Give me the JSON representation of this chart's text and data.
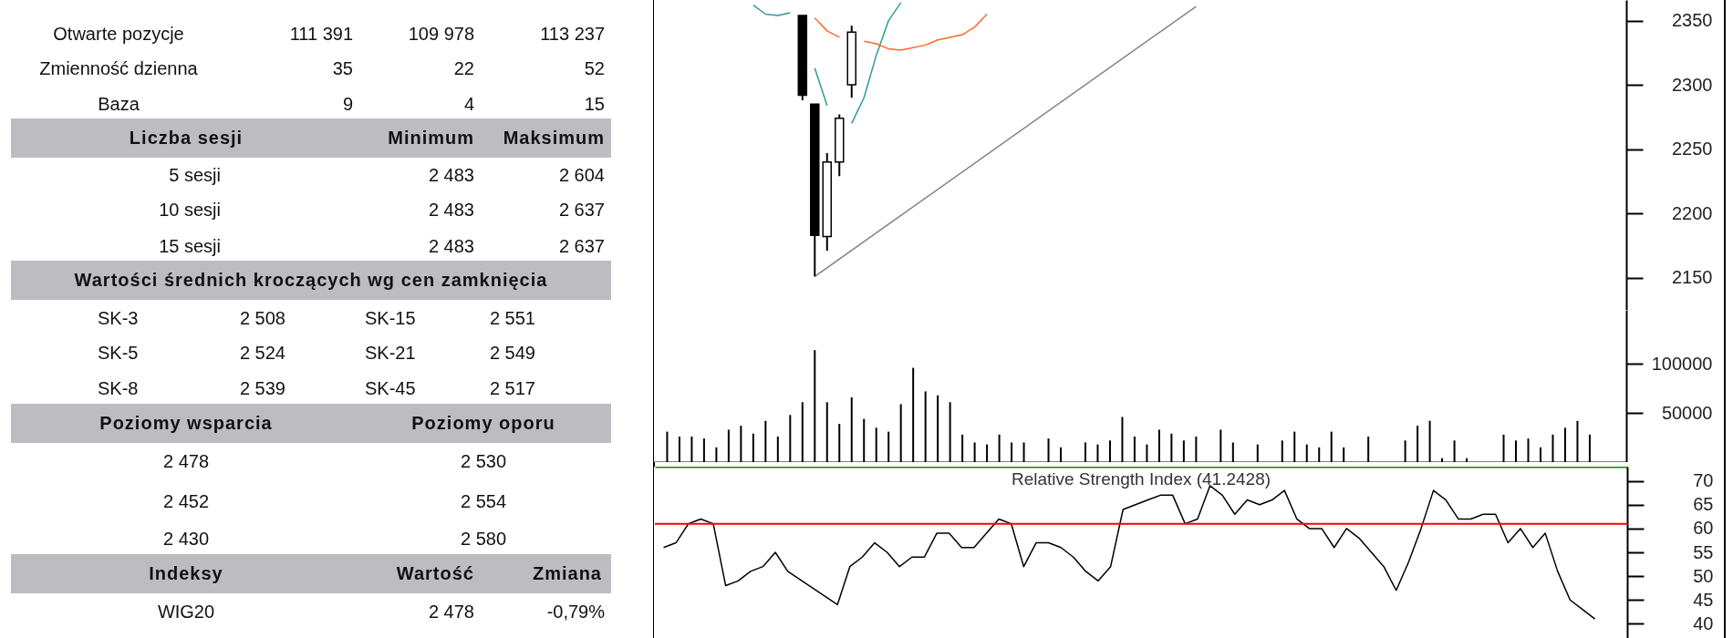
{
  "chart_data": [
    {
      "type": "other",
      "annotations": [
        "Otwarte pozycje",
        "111 391",
        "109 978",
        "113 237",
        "Zmienność dzienna",
        "35",
        "22",
        "52",
        "Baza",
        "9",
        "4",
        "15",
        "Liczba sesji",
        "Minimum",
        "Maksimum",
        "5 sesji",
        "2 483",
        "2 604",
        "10 sesji",
        "2 483",
        "2 637",
        "15 sesji",
        "2 483",
        "2 637",
        "Wartości średnich kroczących wg cen zamknięcia",
        "SK-3",
        "2 508",
        "SK-15",
        "2 551",
        "SK-5",
        "2 524",
        "SK-21",
        "2 549",
        "SK-8",
        "2 539",
        "SK-45",
        "2 517",
        "Poziomy wsparcia",
        "Poziomy oporu",
        "2 478",
        "2 530",
        "2 452",
        "2 554",
        "2 430",
        "2 580",
        "Indeksy",
        "Wartość",
        "Zmiana",
        "WIG20",
        "2 478",
        "-0,79%"
      ]
    },
    {
      "type": "candlestick",
      "categories": [
        null,
        null,
        null,
        null,
        null,
        null,
        null,
        null,
        null,
        null,
        null,
        null,
        null,
        null,
        null,
        null,
        null,
        null,
        null,
        null,
        null,
        null,
        null,
        null,
        null,
        null,
        null,
        null,
        null,
        null,
        null,
        null,
        null,
        null,
        null,
        null,
        null,
        null,
        null,
        null,
        null,
        null,
        null,
        null,
        null,
        null,
        null,
        null,
        null,
        null,
        null,
        null,
        null,
        null,
        null,
        null,
        null,
        null,
        null,
        null,
        null,
        null,
        null,
        null,
        null,
        null,
        null,
        null,
        null,
        null,
        null,
        null,
        null,
        null,
        null,
        null
      ],
      "ohlc": [
        null,
        null,
        null,
        null,
        null,
        null,
        null,
        null,
        null,
        null,
        null,
        [
          2354,
          2354,
          2288,
          2292
        ],
        [
          2285,
          2285,
          2151,
          2183
        ],
        [
          2182,
          2247,
          2171,
          2240
        ],
        [
          2240,
          2277,
          2229,
          2274
        ],
        [
          2300,
          2346,
          2290,
          2341
        ],
        null,
        null,
        null,
        null,
        null,
        null,
        null,
        null,
        null,
        null,
        null,
        null,
        null,
        null,
        null,
        null,
        null,
        null,
        null,
        null,
        null,
        null,
        null,
        null,
        null,
        null,
        null,
        null,
        null,
        null,
        null,
        null,
        null,
        null,
        null,
        null,
        null,
        null,
        null,
        null,
        null,
        null,
        null,
        null,
        null,
        null,
        null,
        null,
        null,
        null,
        null,
        null,
        null,
        null,
        null,
        null,
        null,
        null,
        null,
        null
      ],
      "series": [
        {
          "type": "line",
          "color": "#339999",
          "values": [
            null,
            null,
            null,
            null,
            null,
            null,
            null,
            2362,
            2355,
            2354,
            2356,
            null,
            2313,
            2284,
            null,
            2270,
            2290,
            2323,
            2350,
            2364,
            null,
            null,
            null,
            null,
            null,
            null,
            null,
            null,
            null,
            null,
            null,
            null,
            null,
            null,
            null,
            null,
            null,
            null,
            null,
            null,
            null,
            null,
            null,
            null,
            null,
            null,
            null,
            null,
            null,
            null,
            null,
            null,
            null,
            null,
            null,
            null,
            null,
            null,
            null,
            null,
            null,
            null,
            null,
            null,
            null,
            null,
            null,
            null,
            null,
            null,
            null,
            null,
            null,
            null,
            null,
            null
          ]
        },
        {
          "type": "line",
          "color": "#ff6a2a",
          "values": [
            null,
            null,
            null,
            null,
            null,
            null,
            null,
            null,
            null,
            null,
            null,
            null,
            2352,
            2342,
            2337,
            null,
            2334,
            2332,
            2328,
            2327,
            2329,
            2331,
            2335,
            2337,
            2339,
            2345,
            2355,
            null,
            null,
            null,
            null,
            null,
            null,
            null,
            null,
            null,
            null,
            null,
            null,
            null,
            null,
            null,
            null,
            null,
            null,
            null,
            null,
            null,
            null,
            null,
            null,
            null,
            null,
            null,
            null,
            null,
            null,
            null,
            null,
            null,
            null,
            null,
            null,
            null,
            null,
            null,
            null,
            null,
            null,
            null,
            null,
            null,
            null,
            null,
            null,
            null
          ]
        },
        {
          "type": "line",
          "color": "#808080",
          "values": [
            null,
            null,
            null,
            null,
            null,
            null,
            null,
            null,
            null,
            null,
            null,
            null,
            2151,
            null,
            null,
            null,
            null,
            null,
            null,
            null,
            null,
            null,
            null,
            null,
            null,
            null,
            null,
            null,
            null,
            null,
            null,
            null,
            null,
            null,
            null,
            null,
            null,
            null,
            null,
            null,
            null,
            null,
            null,
            2361,
            null,
            null,
            null,
            null,
            null,
            null,
            null,
            null,
            null,
            null,
            null,
            null,
            null,
            null,
            null,
            null,
            null,
            null,
            null,
            null,
            null,
            null,
            null,
            null,
            null,
            null,
            null,
            null,
            null,
            null,
            null,
            null
          ]
        }
      ],
      "ylim": [
        2125,
        2366
      ],
      "yticks": [
        2150,
        2200,
        2250,
        2300,
        2350
      ]
    },
    {
      "type": "bar",
      "categories": [
        null,
        null,
        null,
        null,
        null,
        null,
        null,
        null,
        null,
        null,
        null,
        null,
        null,
        null,
        null,
        null,
        null,
        null,
        null,
        null,
        null,
        null,
        null,
        null,
        null,
        null,
        null,
        null,
        null,
        null,
        null,
        null,
        null,
        null,
        null,
        null,
        null,
        null,
        null,
        null,
        null,
        null,
        null,
        null,
        null,
        null,
        null,
        null,
        null,
        null,
        null,
        null,
        null,
        null,
        null,
        null,
        null,
        null,
        null,
        null,
        null,
        null,
        null,
        null,
        null,
        null,
        null,
        null,
        null,
        null,
        null,
        null,
        null,
        null,
        null,
        null
      ],
      "values": [
        31000,
        26000,
        26000,
        24000,
        15000,
        33000,
        37000,
        29000,
        42000,
        26000,
        48000,
        61000,
        114000,
        61000,
        39000,
        66000,
        44000,
        35000,
        31000,
        59000,
        96000,
        72000,
        68000,
        61000,
        28000,
        20000,
        18000,
        28000,
        20000,
        20000,
        null,
        24000,
        15000,
        null,
        20000,
        18000,
        22000,
        46000,
        26000,
        18000,
        33000,
        29000,
        22000,
        26000,
        null,
        33000,
        20000,
        null,
        18000,
        null,
        22000,
        31000,
        18000,
        15000,
        31000,
        15000,
        null,
        26000,
        null,
        null,
        22000,
        37000,
        42000,
        4000,
        22000,
        4000,
        null,
        null,
        28000,
        22000,
        24000,
        15000,
        28000,
        35000,
        42000,
        28000
      ],
      "color": "#000000",
      "ylim": [
        0,
        155000
      ],
      "yticks": [
        50000,
        100000
      ]
    },
    {
      "type": "line",
      "title": "Relative Strength Index (41.2428)",
      "categories": [
        null,
        null,
        null,
        null,
        null,
        null,
        null,
        null,
        null,
        null,
        null,
        null,
        null,
        null,
        null,
        null,
        null,
        null,
        null,
        null,
        null,
        null,
        null,
        null,
        null,
        null,
        null,
        null,
        null,
        null,
        null,
        null,
        null,
        null,
        null,
        null,
        null,
        null,
        null,
        null,
        null,
        null,
        null,
        null,
        null,
        null,
        null,
        null,
        null,
        null,
        null,
        null,
        null,
        null,
        null,
        null,
        null,
        null,
        null,
        null,
        null,
        null,
        null,
        null,
        null,
        null,
        null,
        null,
        null,
        null,
        null,
        null,
        null,
        null,
        null,
        null
      ],
      "values": [
        56,
        57,
        61,
        62,
        61,
        48,
        49,
        51,
        52,
        55,
        51,
        null,
        null,
        null,
        44,
        52,
        54,
        57,
        55,
        52,
        54,
        54,
        59,
        59,
        56,
        56,
        59,
        62,
        61,
        52,
        57,
        57,
        56,
        54,
        51,
        49,
        52,
        64,
        65,
        66,
        67,
        67,
        61,
        62,
        69,
        67,
        63,
        66,
        65,
        66,
        68,
        62,
        60,
        60,
        56,
        60,
        58,
        55,
        52,
        47,
        53,
        60,
        68,
        66,
        62,
        62,
        63,
        63,
        57,
        60,
        56,
        59,
        51,
        45,
        43,
        41
      ],
      "color": "#000000",
      "ylim": [
        37,
        73
      ],
      "yticks": [
        40,
        45,
        50,
        55,
        60,
        65,
        70
      ],
      "ref_lines": [
        {
          "axis": "y",
          "value": 61,
          "color": "#ff0000"
        }
      ]
    }
  ]
}
